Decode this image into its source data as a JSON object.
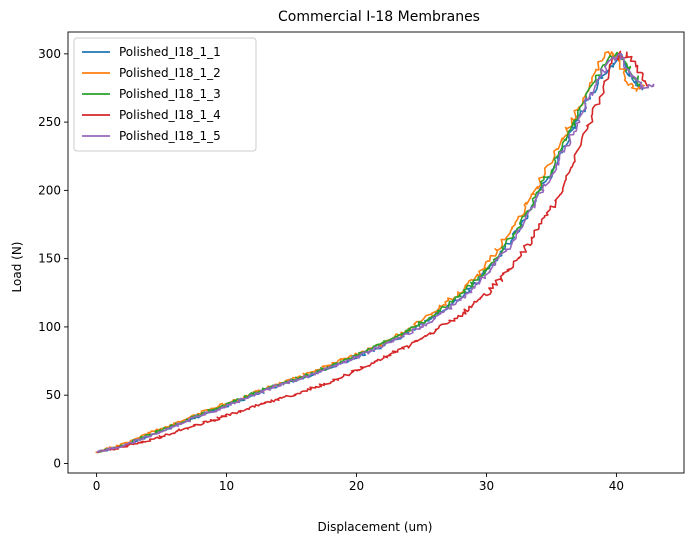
{
  "chart_data": {
    "type": "line",
    "title": "Commercial I-18 Membranes",
    "xlabel": "Displacement (um)",
    "ylabel": "Load (N)",
    "xlim": [
      -2.2,
      45.2
    ],
    "ylim": [
      -7,
      316
    ],
    "xticks": [
      0,
      10,
      20,
      30,
      40
    ],
    "yticks": [
      0,
      50,
      100,
      150,
      200,
      250,
      300
    ],
    "grid": false,
    "legend_position": "top-left",
    "series": [
      {
        "name": "Polished_I18_1_1",
        "color": "#1f77b4",
        "x": [
          0,
          2,
          4,
          6,
          8,
          10,
          12,
          14,
          16,
          18,
          20,
          22,
          24,
          26,
          28,
          30,
          32,
          33,
          34,
          35,
          36,
          37,
          38,
          38.8,
          39.6,
          40.3,
          41,
          42
        ],
        "y": [
          8,
          13,
          20,
          27,
          35,
          42,
          50,
          57,
          63,
          70,
          78,
          86,
          96,
          108,
          122,
          140,
          165,
          180,
          197,
          214,
          232,
          252,
          270,
          283,
          292,
          298,
          285,
          275
        ]
      },
      {
        "name": "Polished_I18_1_2",
        "color": "#ff7f0e",
        "x": [
          0,
          2,
          4,
          6,
          8,
          10,
          12,
          14,
          16,
          18,
          20,
          22,
          24,
          26,
          28,
          30,
          32,
          33,
          34,
          35,
          36,
          37,
          38,
          38.7,
          39.3,
          40,
          40.6,
          41.2,
          42
        ],
        "y": [
          8,
          14,
          22,
          29,
          37,
          44,
          51,
          58,
          65,
          72,
          80,
          88,
          98,
          111,
          126,
          145,
          172,
          188,
          205,
          222,
          240,
          260,
          280,
          293,
          300,
          300,
          285,
          275,
          275
        ]
      },
      {
        "name": "Polished_I18_1_3",
        "color": "#2ca02c",
        "x": [
          0,
          2,
          4,
          6,
          8,
          10,
          12,
          14,
          16,
          18,
          20,
          22,
          24,
          26,
          28,
          30,
          32,
          33,
          34,
          35,
          36,
          37,
          38,
          38.8,
          39.5,
          40.2,
          41,
          42
        ],
        "y": [
          8,
          13,
          21,
          28,
          36,
          43,
          51,
          58,
          64,
          71,
          79,
          88,
          97,
          109,
          123,
          141,
          167,
          182,
          199,
          216,
          234,
          254,
          274,
          288,
          296,
          300,
          288,
          276
        ]
      },
      {
        "name": "Polished_I18_1_4",
        "color": "#d62728",
        "x": [
          0,
          2,
          4,
          6,
          8,
          10,
          12,
          14,
          16,
          18,
          20,
          22,
          24,
          26,
          28,
          30,
          32,
          33,
          34,
          35,
          36,
          37,
          38,
          39,
          39.6,
          40.2,
          41,
          41.8,
          42.5
        ],
        "y": [
          8,
          12,
          17,
          23,
          29,
          35,
          41,
          47,
          53,
          60,
          68,
          77,
          86,
          97,
          109,
          124,
          145,
          158,
          172,
          187,
          205,
          227,
          252,
          277,
          292,
          300,
          298,
          285,
          275
        ]
      },
      {
        "name": "Polished_I18_1_5",
        "color": "#9467bd",
        "x": [
          0,
          2,
          4,
          6,
          8,
          10,
          12,
          14,
          16,
          18,
          20,
          22,
          24,
          26,
          28,
          30,
          32,
          33,
          34,
          35,
          36,
          37,
          38,
          38.8,
          39.5,
          40.2,
          41,
          42,
          43
        ],
        "y": [
          8,
          13,
          20,
          27,
          35,
          42,
          50,
          57,
          63,
          70,
          78,
          86,
          95,
          106,
          120,
          138,
          163,
          178,
          194,
          211,
          230,
          250,
          270,
          285,
          295,
          300,
          285,
          276,
          275
        ]
      }
    ]
  }
}
